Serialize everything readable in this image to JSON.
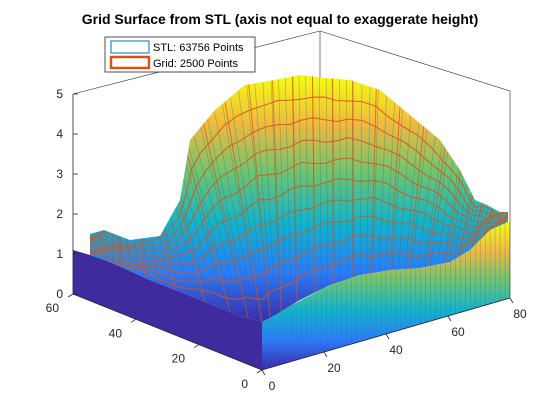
{
  "chart_data": {
    "type": "surface",
    "title": "Grid Surface from STL (axis not equal to exaggerate height)",
    "xlabel": "",
    "ylabel": "",
    "zlabel": "",
    "xlim": [
      0,
      80
    ],
    "ylim": [
      0,
      60
    ],
    "zlim": [
      0,
      5
    ],
    "x_ticks": [
      0,
      20,
      40,
      60,
      80
    ],
    "y_ticks": [
      0,
      20,
      40,
      60
    ],
    "z_ticks": [
      0,
      1,
      2,
      3,
      4,
      5
    ],
    "grid": false,
    "box": true,
    "colormap": "parula",
    "legend": {
      "placement": "top-left",
      "entries": [
        {
          "label": "STL: 63756 Points",
          "color": "#0072BD",
          "style": "thin-outline"
        },
        {
          "label": "Grid: 2500 Points",
          "color": "#D95319",
          "style": "thick-outline"
        }
      ]
    },
    "series": [
      {
        "name": "STL: 63756 Points",
        "kind": "mesh",
        "points": 63756,
        "color": "#0072BD"
      },
      {
        "name": "Grid: 2500 Points",
        "kind": "grid",
        "points": 2500,
        "color": "#D95319"
      }
    ]
  }
}
